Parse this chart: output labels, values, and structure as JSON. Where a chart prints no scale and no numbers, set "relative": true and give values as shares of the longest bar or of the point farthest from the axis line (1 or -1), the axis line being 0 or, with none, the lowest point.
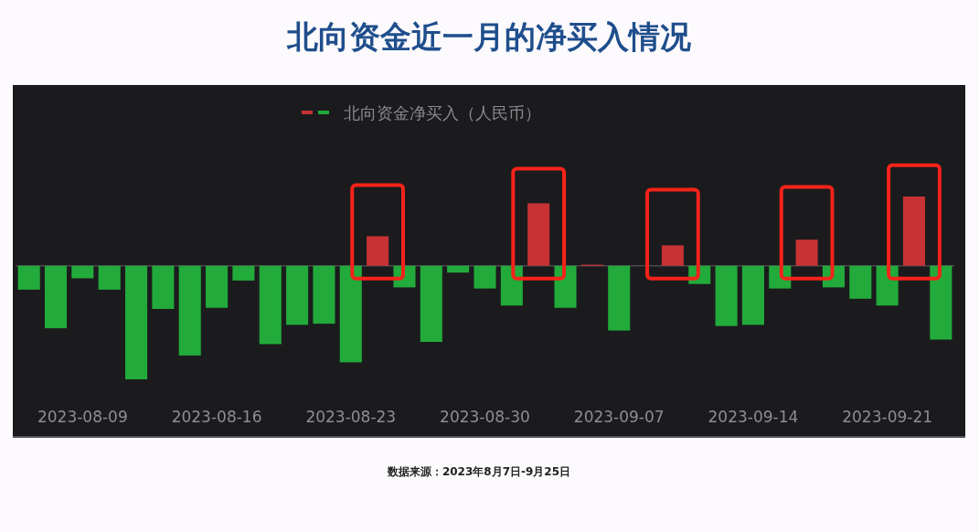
{
  "chart_data": {
    "type": "bar",
    "title": "北向资金近一月的净买入情况",
    "annotations": [
      "数据来源：2023年8月7日-9月25日"
    ],
    "relative": true,
    "legend": "top",
    "categories": [
      null,
      null,
      "2023-08-09",
      null,
      null,
      null,
      null,
      "2023-08-16",
      null,
      null,
      null,
      null,
      "2023-08-23",
      null,
      null,
      null,
      null,
      "2023-08-30",
      null,
      null,
      null,
      null,
      "2023-09-07",
      null,
      null,
      null,
      null,
      "2023-09-14",
      null,
      null,
      null,
      null,
      "2023-09-21",
      null,
      null
    ],
    "series": [
      {
        "name": "北向资金净买入（人民币）",
        "values": [
          -0.21,
          -0.55,
          -0.11,
          -0.21,
          -1,
          -0.38,
          -0.79,
          -0.37,
          -0.13,
          -0.69,
          -0.52,
          -0.51,
          -0.85,
          0.26,
          -0.19,
          -0.67,
          -0.06,
          -0.2,
          -0.35,
          0.55,
          -0.37,
          0.01,
          -0.57,
          null,
          0.18,
          -0.16,
          -0.53,
          -0.52,
          -0.2,
          0.23,
          -0.19,
          -0.29,
          -0.35,
          0.61,
          -0.65
        ],
        "colors": [
          "#22ab3b",
          "#22ab3b",
          "#22ab3b",
          "#22ab3b",
          "#22ab3b",
          "#22ab3b",
          "#22ab3b",
          "#22ab3b",
          "#22ab3b",
          "#22ab3b",
          "#22ab3b",
          "#22ab3b",
          "#22ab3b",
          "#c83234",
          "#22ab3b",
          "#22ab3b",
          "#22ab3b",
          "#22ab3b",
          "#22ab3b",
          "#c83234",
          "#22ab3b",
          "#c83234",
          "#22ab3b",
          "#22ab3b",
          "#c83234",
          "#22ab3b",
          "#22ab3b",
          "#22ab3b",
          "#22ab3b",
          "#c83234",
          "#22ab3b",
          "#22ab3b",
          "#22ab3b",
          "#c83234",
          "#22ab3b"
        ]
      }
    ]
  }
}
